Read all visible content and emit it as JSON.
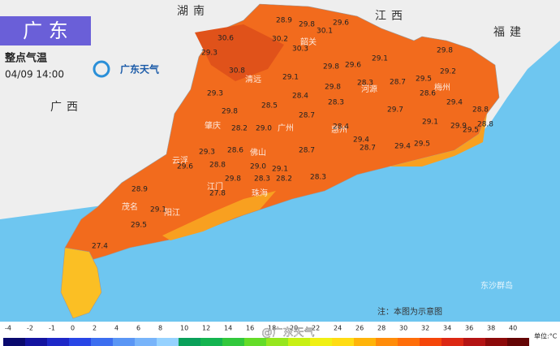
{
  "header": {
    "title": "广 东",
    "subtitle": "整点气温",
    "datetime": "04/09 14:00",
    "logo": "广东天气"
  },
  "regions": [
    "湖南",
    "江西",
    "福建",
    "广西"
  ],
  "cities": [
    "韶关",
    "清远",
    "河源",
    "梅州",
    "肇庆",
    "广州",
    "惠州",
    "佛山",
    "云浮",
    "江门",
    "珠海",
    "阳江",
    "茂名",
    "东沙群岛"
  ],
  "temperatures": [
    "28.9",
    "29.8",
    "29.6",
    "30.6",
    "30.2",
    "30.1",
    "29.3",
    "30.3",
    "29.8",
    "29.6",
    "29.1",
    "29.8",
    "30.8",
    "29.1",
    "29.8",
    "28.3",
    "28.7",
    "29.5",
    "29.2",
    "29.3",
    "28.4",
    "28.6",
    "29.8",
    "28.5",
    "28.3",
    "29.7",
    "29.4",
    "28.8",
    "28.7",
    "28.2",
    "29.0",
    "28.4",
    "29.1",
    "29.9",
    "29.5",
    "28.8",
    "29.4",
    "28.6",
    "29.3",
    "28.7",
    "29.4",
    "29.5",
    "28.7",
    "29.6",
    "28.8",
    "29.0",
    "29.1",
    "29.8",
    "28.3",
    "28.2",
    "28.3",
    "28.9",
    "27.8",
    "29.1",
    "29.5",
    "27.4"
  ],
  "note": "注：本图为示意图",
  "legend": {
    "ticks": [
      -4,
      -2,
      -1,
      0,
      2,
      4,
      6,
      8,
      10,
      12,
      14,
      16,
      18,
      20,
      22,
      24,
      26,
      28,
      30,
      32,
      34,
      36,
      38,
      40
    ],
    "colors": [
      "#0a0a6e",
      "#1414a0",
      "#1e28c8",
      "#2846e6",
      "#3c6ef0",
      "#5a96f5",
      "#78b4fa",
      "#96d2ff",
      "#0aa05a",
      "#14b450",
      "#32c83c",
      "#64dc28",
      "#96e61e",
      "#c8f014",
      "#f0f014",
      "#ffdc14",
      "#ffb40a",
      "#ff8c0a",
      "#ff6e0a",
      "#f5460a",
      "#dc2814",
      "#b41414",
      "#8c0a0a",
      "#640505"
    ],
    "unit": "单位:°C"
  },
  "watermark": "@广东天气"
}
